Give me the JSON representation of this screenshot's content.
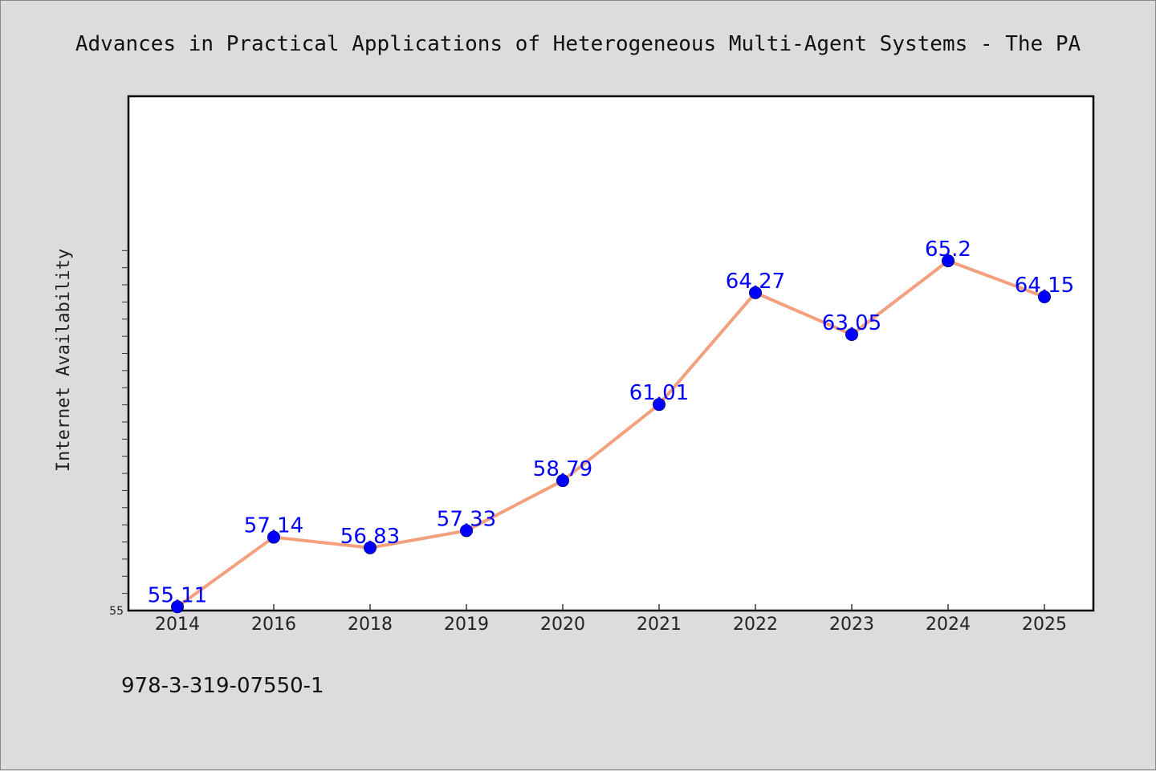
{
  "chart_data": {
    "type": "line",
    "title": "Advances in Practical Applications of Heterogeneous Multi-Agent Systems - The PA",
    "xlabel": "",
    "ylabel": "Internet Availability",
    "categories": [
      "2014",
      "2016",
      "2018",
      "2019",
      "2020",
      "2021",
      "2022",
      "2023",
      "2024",
      "2025"
    ],
    "series": [
      {
        "values": [
          55.11,
          57.14,
          56.83,
          57.33,
          58.79,
          61.01,
          64.27,
          63.05,
          65.2,
          64.15
        ],
        "labels": [
          "55.11",
          "57.14",
          "56.83",
          "57.33",
          "58.79",
          "61.01",
          "64.27",
          "63.05",
          "65.2",
          "64.15"
        ]
      }
    ],
    "ylim": [
      55,
      70
    ],
    "yticks_labeled": [
      "55"
    ],
    "grid": false,
    "legend": "none"
  },
  "footnote": "978-3-319-07550-1",
  "colors": {
    "background": "#dcdcdc",
    "plot_background": "#ffffff",
    "line": "#f4a07e",
    "marker": "#0000ff",
    "data_label": "#0000ff"
  }
}
